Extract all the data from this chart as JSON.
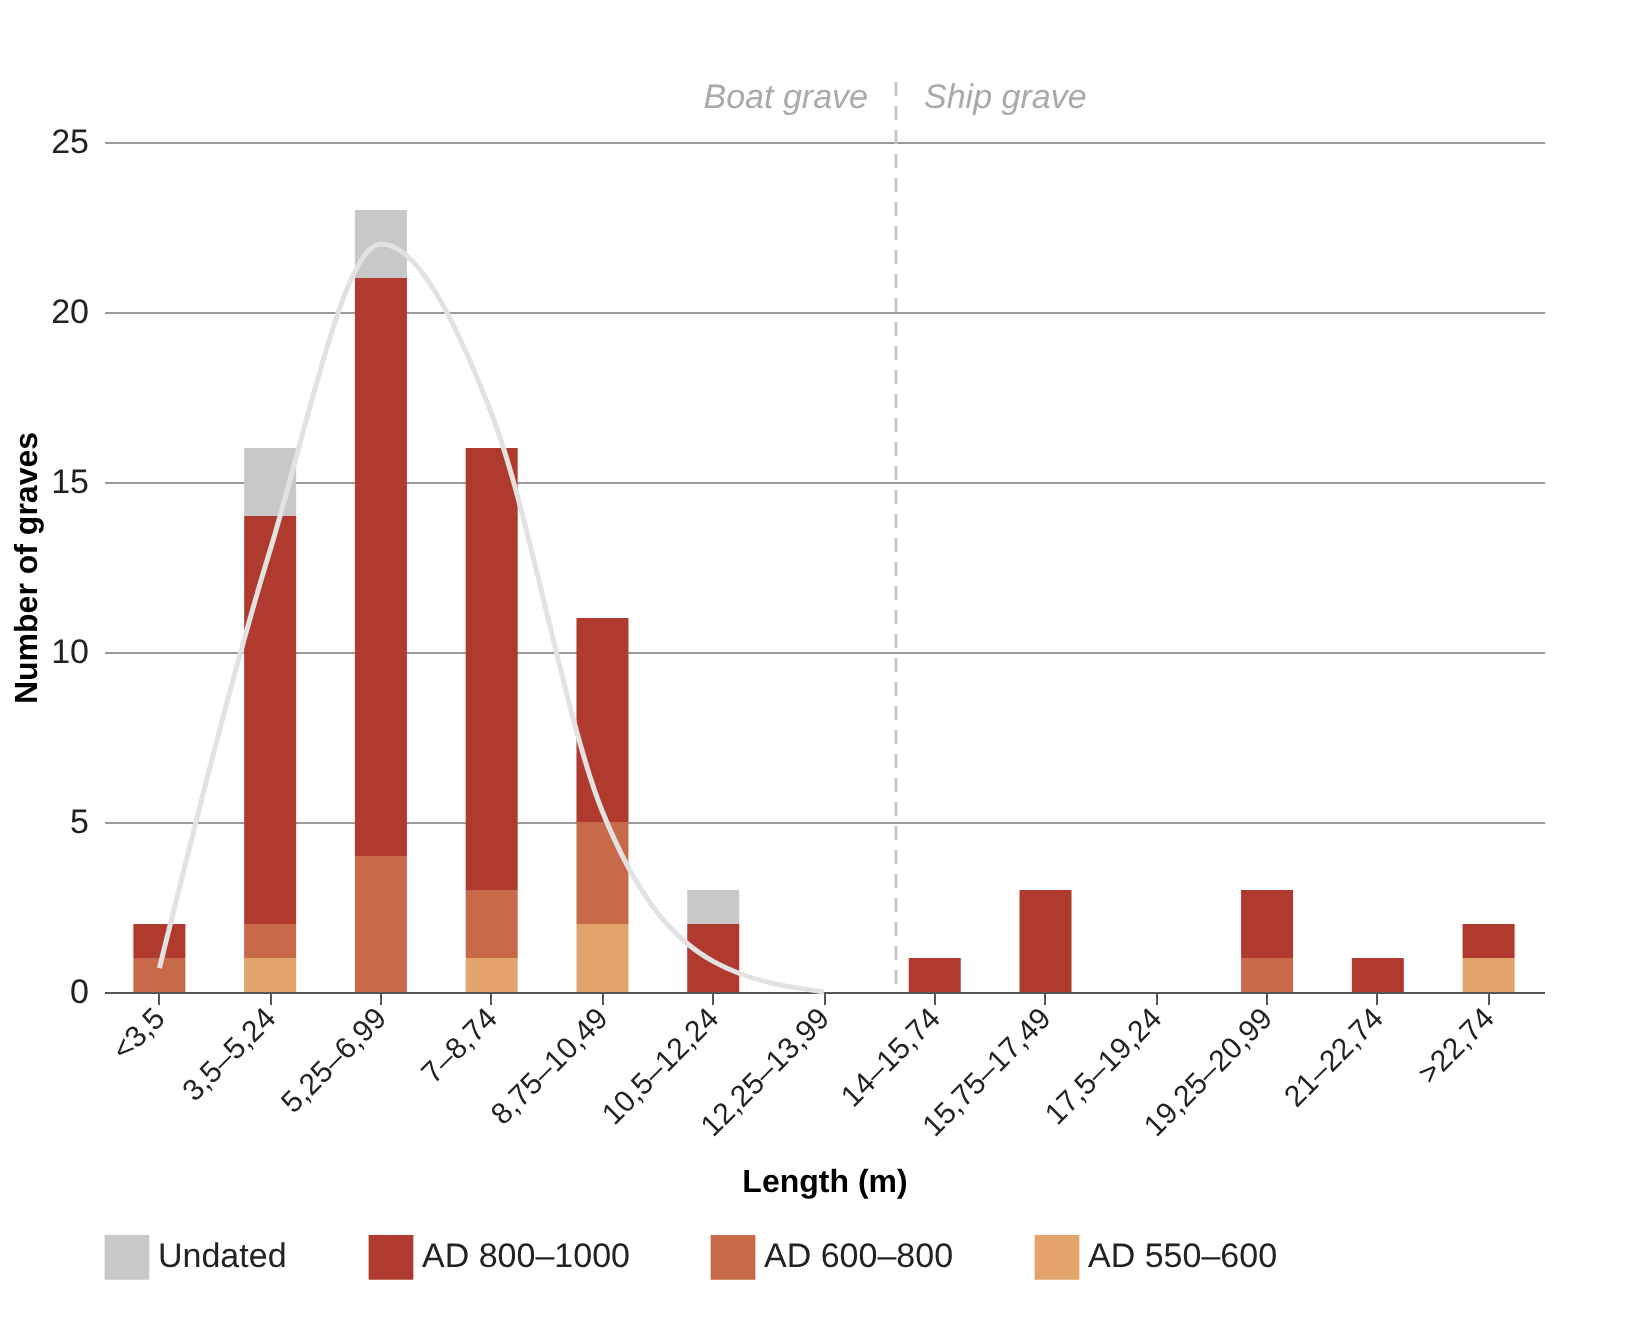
{
  "chart_data": {
    "type": "bar",
    "stacked": true,
    "xlabel": "Length (m)",
    "ylabel": "Number of graves",
    "categories": [
      "<3,5",
      "3,5–5,24",
      "5,25–6,99",
      "7–8,74",
      "8,75–10,49",
      "10,5–12,24",
      "12,25–13,99",
      "14–15,74",
      "15,75–17,49",
      "17,5–19,24",
      "19,25–20,99",
      "21–22,74",
      ">22,74"
    ],
    "series": [
      {
        "name": "AD 550–600",
        "color": "#e2a46a",
        "values": [
          0,
          1,
          0,
          1,
          2,
          0,
          0,
          0,
          0,
          0,
          0,
          0,
          1
        ]
      },
      {
        "name": "AD 600–800",
        "color": "#c8694a",
        "values": [
          1,
          1,
          4,
          2,
          3,
          0,
          0,
          0,
          0,
          0,
          1,
          0,
          0
        ]
      },
      {
        "name": "AD 800–1000",
        "color": "#b03a2e",
        "values": [
          1,
          12,
          17,
          13,
          6,
          2,
          0,
          1,
          3,
          0,
          2,
          1,
          1
        ]
      },
      {
        "name": "Undated",
        "color": "#c8c8c8",
        "values": [
          0,
          2,
          2,
          0,
          0,
          1,
          0,
          0,
          0,
          0,
          0,
          0,
          0
        ]
      },
      {
        "type": "line",
        "color": "#e2e2e2",
        "values": [
          0.7,
          13,
          22,
          17,
          5.3,
          0.9,
          0,
          null,
          null,
          null,
          null,
          null,
          null
        ]
      }
    ],
    "ylim": [
      0,
      25
    ],
    "yticks": [
      0,
      5,
      10,
      15,
      20,
      25
    ],
    "grid": "y",
    "legend": "bottom",
    "ref_lines": [
      {
        "axis": "x",
        "value": "14–15,74",
        "color": "#c8c8c8",
        "line_style": "dashed"
      }
    ],
    "annotations": [
      "Boat grave",
      "Ship grave"
    ]
  }
}
